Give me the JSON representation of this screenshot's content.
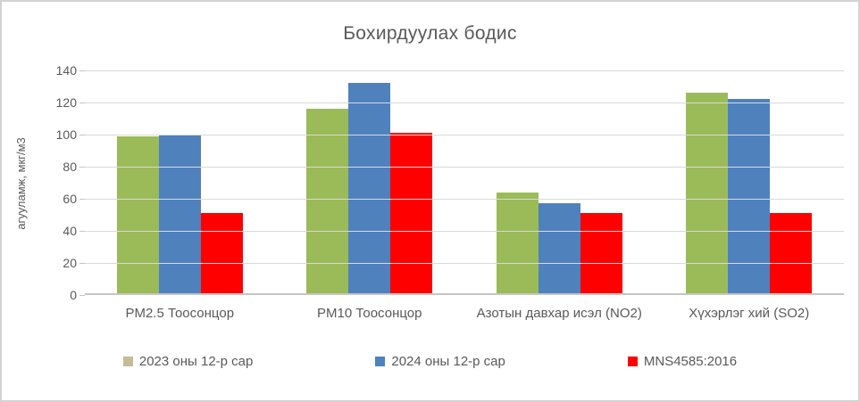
{
  "window": {
    "background": "#ffffff",
    "border_color": "#d2d2d2"
  },
  "chart_data": {
    "type": "bar",
    "title": "Бохирдуулах бодис",
    "subtitle": "",
    "xlabel": "",
    "ylabel": "агууламж, мкг/м3",
    "categories": [
      "PM2.5 Тоосонцор",
      "PM10 Тоосонцор",
      "Азотын давхар исэл (NO2)",
      "Хүхэрлэг хий (SO2)"
    ],
    "series": [
      {
        "name": "2023 оны 12-р сар",
        "values": [
          98,
          115,
          63,
          125
        ],
        "bar_color": "#9bbb59",
        "legend_color": "#c3bd97"
      },
      {
        "name": "2024 оны 12-р сар",
        "values": [
          99,
          131,
          56,
          121
        ],
        "bar_color": "#4f81bd",
        "legend_color": "#4f81bd"
      },
      {
        "name": "MNS4585:2016",
        "values": [
          50,
          100,
          50,
          50
        ],
        "bar_color": "#ff0000",
        "legend_color": "#ff0000"
      }
    ],
    "ylim": [
      0,
      140
    ],
    "yticks": [
      0,
      20,
      40,
      60,
      80,
      100,
      120,
      140
    ],
    "grid": true,
    "legend_position": "bottom"
  },
  "colors": {
    "title_text": "#595959",
    "axis_text": "#595959",
    "gridline": "#d9d9d9",
    "axis_line": "#c6c6c6"
  }
}
